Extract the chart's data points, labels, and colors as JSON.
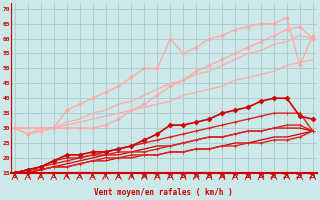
{
  "xlabel": "Vent moyen/en rafales ( km/h )",
  "background_color": "#cce8e8",
  "grid_color": "#aacccc",
  "x_values": [
    0,
    1,
    2,
    3,
    4,
    5,
    6,
    7,
    8,
    9,
    10,
    11,
    12,
    13,
    14,
    15,
    16,
    17,
    18,
    19,
    20,
    21,
    22,
    23
  ],
  "ylim": [
    15,
    72
  ],
  "xlim": [
    -0.3,
    23.3
  ],
  "yticks": [
    15,
    20,
    25,
    30,
    35,
    40,
    45,
    50,
    55,
    60,
    65,
    70
  ],
  "lines": [
    {
      "y": [
        30,
        30,
        30,
        30,
        31,
        32,
        33,
        34,
        35,
        36,
        37,
        38,
        39,
        41,
        42,
        43,
        44,
        46,
        47,
        48,
        49,
        51,
        52,
        53
      ],
      "color": "#ffaaaa",
      "lw": 0.9,
      "marker": null,
      "ms": 0,
      "zorder": 2
    },
    {
      "y": [
        30,
        30,
        30,
        30,
        32,
        33,
        35,
        36,
        38,
        39,
        41,
        43,
        45,
        46,
        48,
        49,
        51,
        53,
        55,
        56,
        58,
        59,
        61,
        60
      ],
      "color": "#ffaaaa",
      "lw": 0.9,
      "marker": null,
      "ms": 0,
      "zorder": 2
    },
    {
      "y": [
        30,
        28,
        29,
        30,
        36,
        38,
        40,
        42,
        44,
        47,
        50,
        50,
        60,
        55,
        57,
        60,
        61,
        63,
        64,
        65,
        65,
        67,
        51,
        61
      ],
      "color": "#ffaaaa",
      "lw": 1.0,
      "marker": "D",
      "ms": 2.0,
      "zorder": 3
    },
    {
      "y": [
        30,
        28,
        30,
        30,
        30,
        30,
        30,
        31,
        33,
        36,
        38,
        41,
        44,
        46,
        49,
        51,
        53,
        55,
        57,
        59,
        61,
        63,
        64,
        60
      ],
      "color": "#ffaaaa",
      "lw": 1.0,
      "marker": "D",
      "ms": 2.0,
      "zorder": 3
    },
    {
      "y": [
        15,
        15,
        16,
        17,
        17,
        18,
        19,
        19,
        20,
        20,
        21,
        21,
        22,
        22,
        23,
        23,
        24,
        25,
        25,
        26,
        27,
        27,
        28,
        29
      ],
      "color": "#cc0000",
      "lw": 0.9,
      "marker": null,
      "ms": 0,
      "zorder": 2
    },
    {
      "y": [
        15,
        15,
        16,
        17,
        18,
        19,
        20,
        21,
        21,
        22,
        23,
        24,
        24,
        25,
        26,
        27,
        27,
        28,
        29,
        29,
        30,
        30,
        30,
        29
      ],
      "color": "#cc0000",
      "lw": 0.9,
      "marker": null,
      "ms": 0,
      "zorder": 2
    },
    {
      "y": [
        15,
        16,
        16,
        17,
        17,
        18,
        19,
        20,
        20,
        21,
        21,
        21,
        22,
        22,
        23,
        23,
        24,
        24,
        25,
        25,
        26,
        26,
        27,
        29
      ],
      "color": "#dd2222",
      "lw": 1.0,
      "marker": "+",
      "ms": 3.0,
      "zorder": 3
    },
    {
      "y": [
        15,
        16,
        17,
        19,
        20,
        20,
        21,
        21,
        22,
        22,
        22,
        23,
        24,
        25,
        26,
        27,
        27,
        28,
        29,
        29,
        30,
        31,
        31,
        29
      ],
      "color": "#dd2222",
      "lw": 1.0,
      "marker": "+",
      "ms": 3.0,
      "zorder": 3
    },
    {
      "y": [
        15,
        16,
        17,
        18,
        19,
        20,
        21,
        22,
        23,
        24,
        25,
        26,
        27,
        28,
        29,
        30,
        31,
        32,
        33,
        34,
        35,
        35,
        35,
        29
      ],
      "color": "#dd2222",
      "lw": 1.0,
      "marker": "+",
      "ms": 3.0,
      "zorder": 3
    },
    {
      "y": [
        15,
        16,
        17,
        19,
        21,
        21,
        22,
        22,
        23,
        24,
        26,
        28,
        31,
        31,
        32,
        33,
        35,
        36,
        37,
        39,
        40,
        40,
        34,
        33
      ],
      "color": "#cc0000",
      "lw": 1.2,
      "marker": "D",
      "ms": 2.5,
      "zorder": 4
    }
  ]
}
